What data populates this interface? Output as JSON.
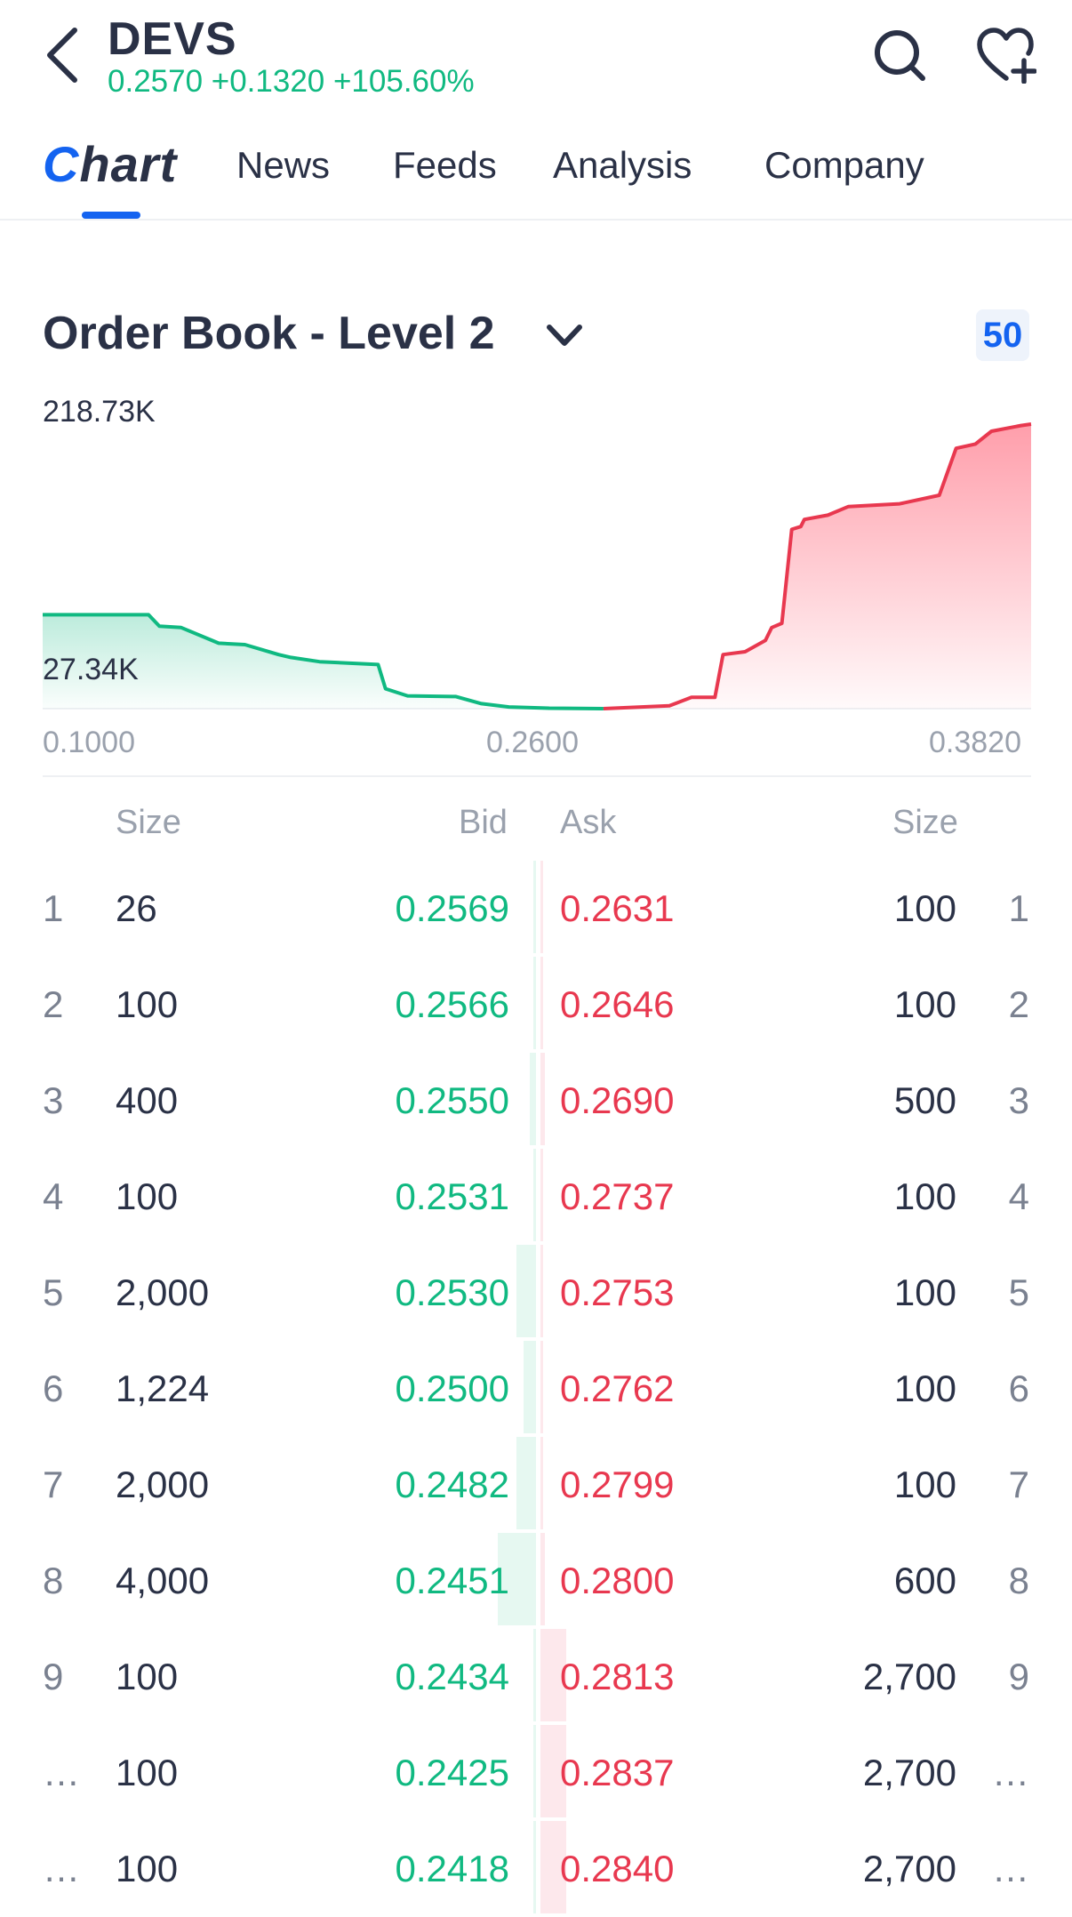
{
  "header": {
    "ticker": "DEVS",
    "quote": "0.2570 +0.1320 +105.60%",
    "back_icon": "back-chevron-icon",
    "search_icon": "search-icon",
    "favorite_icon": "heart-plus-icon"
  },
  "tabs": [
    {
      "label": "Chart",
      "active": true
    },
    {
      "label": "News"
    },
    {
      "label": "Feeds"
    },
    {
      "label": "Analysis"
    },
    {
      "label": "Company"
    }
  ],
  "order_book": {
    "title": "Order Book - Level 2",
    "depth": "50",
    "columns": {
      "bid_size": "Size",
      "bid": "Bid",
      "ask": "Ask",
      "ask_size": "Size"
    },
    "rows": [
      {
        "lvl": "1",
        "bid_size": "26",
        "bid": "0.2569",
        "ask": "0.2631",
        "ask_size": "100",
        "bid_bar": 0.005,
        "ask_bar": 0.005
      },
      {
        "lvl": "2",
        "bid_size": "100",
        "bid": "0.2566",
        "ask": "0.2646",
        "ask_size": "100",
        "bid_bar": 0.012,
        "ask_bar": 0.005
      },
      {
        "lvl": "3",
        "bid_size": "400",
        "bid": "0.2550",
        "ask": "0.2690",
        "ask_size": "500",
        "bid_bar": 0.03,
        "ask_bar": 0.02
      },
      {
        "lvl": "4",
        "bid_size": "100",
        "bid": "0.2531",
        "ask": "0.2737",
        "ask_size": "100",
        "bid_bar": 0.01,
        "ask_bar": 0.005
      },
      {
        "lvl": "5",
        "bid_size": "2,000",
        "bid": "0.2530",
        "ask": "0.2753",
        "ask_size": "100",
        "bid_bar": 0.09,
        "ask_bar": 0.005
      },
      {
        "lvl": "6",
        "bid_size": "1,224",
        "bid": "0.2500",
        "ask": "0.2762",
        "ask_size": "100",
        "bid_bar": 0.06,
        "ask_bar": 0.005
      },
      {
        "lvl": "7",
        "bid_size": "2,000",
        "bid": "0.2482",
        "ask": "0.2799",
        "ask_size": "100",
        "bid_bar": 0.09,
        "ask_bar": 0.005
      },
      {
        "lvl": "8",
        "bid_size": "4,000",
        "bid": "0.2451",
        "ask": "0.2800",
        "ask_size": "600",
        "bid_bar": 0.18,
        "ask_bar": 0.02
      },
      {
        "lvl": "9",
        "bid_size": "100",
        "bid": "0.2434",
        "ask": "0.2813",
        "ask_size": "2,700",
        "bid_bar": 0.005,
        "ask_bar": 0.12
      },
      {
        "lvl": "…",
        "bid_size": "100",
        "bid": "0.2425",
        "ask": "0.2837",
        "ask_size": "2,700",
        "bid_bar": 0.005,
        "ask_bar": 0.12
      },
      {
        "lvl": "…",
        "bid_size": "100",
        "bid": "0.2418",
        "ask": "0.2840",
        "ask_size": "2,700",
        "bid_bar": 0.005,
        "ask_bar": 0.12
      }
    ]
  },
  "chart_data": {
    "type": "area",
    "title": "",
    "y_labels": [
      "218.73K",
      "27.34K"
    ],
    "x_ticks": [
      "0.1000",
      "0.2600",
      "0.3820"
    ],
    "xlim": [
      0.1,
      0.382
    ],
    "ylim": [
      0,
      218730
    ],
    "series": [
      {
        "side": "bid",
        "color": "#10b981",
        "x": [
          0.1,
          0.1302,
          0.1333,
          0.1395,
          0.1502,
          0.1577,
          0.1673,
          0.1708,
          0.179,
          0.1957,
          0.1978,
          0.2041,
          0.2179,
          0.2252,
          0.233,
          0.2445,
          0.26
        ],
        "y": [
          66000,
          66000,
          58000,
          57000,
          46000,
          45000,
          38000,
          36000,
          33000,
          31000,
          14000,
          9000,
          8500,
          3500,
          1200,
          300,
          0
        ]
      },
      {
        "side": "ask",
        "color": "#e8384f",
        "x": [
          0.26,
          0.2788,
          0.2851,
          0.2918,
          0.2941,
          0.3004,
          0.3062,
          0.308,
          0.3109,
          0.3137,
          0.3163,
          0.3173,
          0.324,
          0.3298,
          0.3445,
          0.3558,
          0.3606,
          0.3661,
          0.3707,
          0.3791,
          0.382
        ],
        "y": [
          0,
          2000,
          8000,
          8000,
          38000,
          40000,
          48000,
          57000,
          60000,
          126000,
          128000,
          133000,
          136000,
          142000,
          144000,
          150000,
          183000,
          186000,
          195000,
          199000,
          200000
        ]
      }
    ]
  }
}
